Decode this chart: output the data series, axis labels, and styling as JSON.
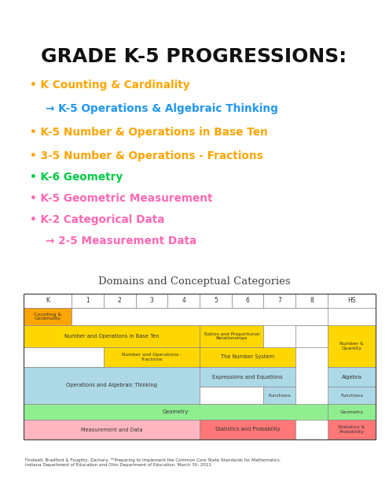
{
  "title": "GRADE K-5 PROGRESSIONS:",
  "bg_color": "#ffffff",
  "bullet_items": [
    {
      "text": "K Counting & Cardinality",
      "color": "#FFA500",
      "bullet": true,
      "indent": false,
      "bold": true
    },
    {
      "text": "→ K-5 Operations & Algebraic Thinking",
      "color": "#2196F3",
      "bullet": false,
      "indent": true,
      "bold": true
    },
    {
      "text": "K-5 Number & Operations in Base Ten",
      "color": "#FFA500",
      "bullet": true,
      "indent": false,
      "bold": true
    },
    {
      "text": "3-5 Number & Operations - Fractions",
      "color": "#FFA500",
      "bullet": true,
      "indent": false,
      "bold": true
    },
    {
      "text": "K-6 Geometry",
      "color": "#00CC44",
      "bullet": true,
      "indent": false,
      "bold": true
    },
    {
      "text": "K-5 Geometric Measurement",
      "color": "#FF69B4",
      "bullet": true,
      "indent": false,
      "bold": true
    },
    {
      "text": "K-2 Categorical Data",
      "color": "#FF69B4",
      "bullet": true,
      "indent": false,
      "bold": true
    },
    {
      "text": "→ 2-5 Measurement Data",
      "color": "#FF69B4",
      "bullet": false,
      "indent": true,
      "bold": true
    }
  ],
  "domains_title": "Domains and Conceptual Categories",
  "grade_headers": [
    "K",
    "1",
    "2",
    "3",
    "4",
    "5",
    "6",
    "7",
    "8",
    "HS"
  ],
  "citation": "Findwell, Bradford & Foughty, Zachary. \"\"Preparing to Implement the Common Core State Standards for Mathematics.\nIndiana Department of Education and Ohio Department of Education. March 30, 2011",
  "col_widths_rel": [
    1.5,
    1,
    1,
    1,
    1,
    1,
    1,
    1,
    1,
    1.5
  ],
  "table_bg": "#ffffff",
  "orange": "#FFA500",
  "yellow": "#FFD700",
  "blue": "#ADD8E6",
  "green": "#90EE90",
  "pink": "#FFB6C1",
  "red": "#FF7777"
}
